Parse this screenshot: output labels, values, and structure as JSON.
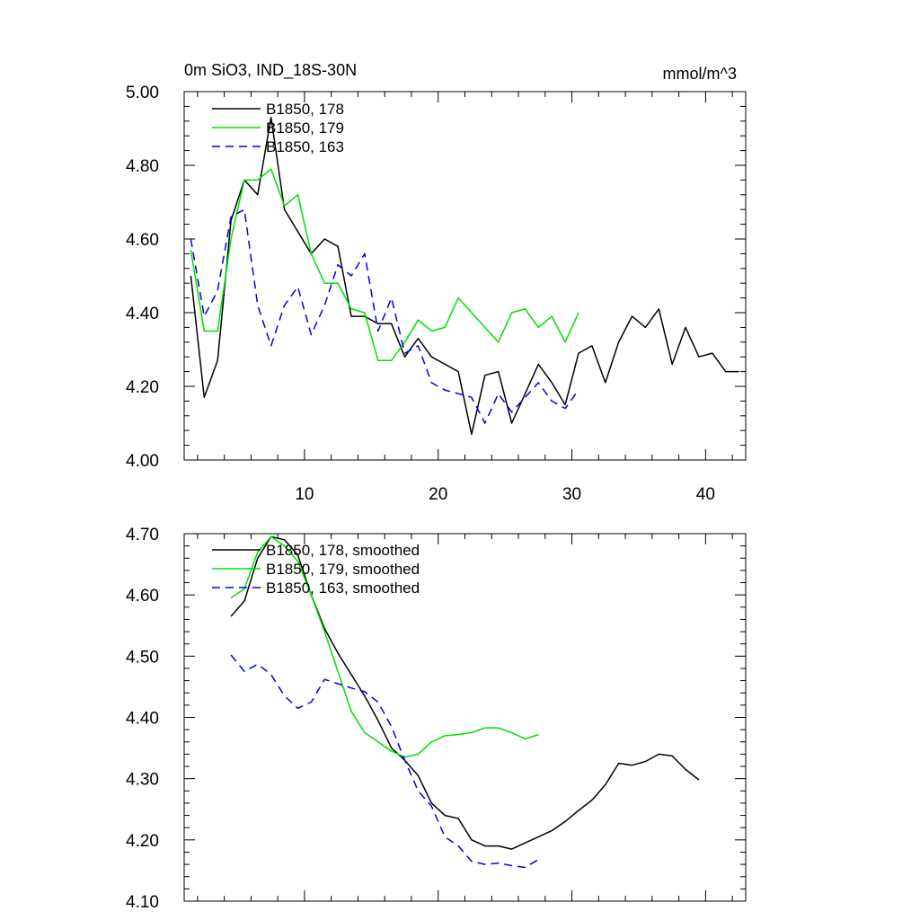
{
  "chart_data": [
    {
      "type": "line",
      "title": "0m SiO3, IND_18S-30N",
      "units": "mmol/m^3",
      "xlim": [
        1,
        43
      ],
      "ylim": [
        4.0,
        5.0
      ],
      "xticks": [
        10,
        20,
        30,
        40
      ],
      "xtick_labels": [
        "10",
        "20",
        "30",
        "40"
      ],
      "yticks": [
        4.0,
        4.2,
        4.4,
        4.6,
        4.8,
        5.0
      ],
      "ytick_labels": [
        "4.00",
        "4.20",
        "4.40",
        "4.60",
        "4.80",
        "5.00"
      ],
      "grid": false,
      "legend_position": "top-left",
      "series": [
        {
          "name": "B1850, 178",
          "color": "#000000",
          "dash": "solid",
          "x": [
            1.5,
            2.5,
            3.5,
            4.5,
            5.5,
            6.5,
            7.5,
            8.5,
            9.5,
            10.5,
            11.5,
            12.5,
            13.5,
            14.5,
            15.5,
            16.5,
            17.5,
            18.5,
            19.5,
            20.5,
            21.5,
            22.5,
            23.5,
            24.5,
            25.5,
            26.5,
            27.5,
            28.5,
            29.5,
            30.5,
            31.5,
            32.5,
            33.5,
            34.5,
            35.5,
            36.5,
            37.5,
            38.5,
            39.5,
            40.5,
            41.5,
            42.5
          ],
          "values": [
            4.5,
            4.17,
            4.27,
            4.65,
            4.76,
            4.72,
            4.93,
            4.68,
            4.62,
            4.56,
            4.6,
            4.58,
            4.39,
            4.39,
            4.37,
            4.37,
            4.28,
            4.33,
            4.28,
            4.26,
            4.24,
            4.07,
            4.23,
            4.24,
            4.1,
            4.18,
            4.26,
            4.21,
            4.15,
            4.29,
            4.31,
            4.21,
            4.32,
            4.39,
            4.36,
            4.41,
            4.26,
            4.36,
            4.28,
            4.29,
            4.24,
            4.24
          ]
        },
        {
          "name": "B1850, 179",
          "color": "#00e000",
          "dash": "solid",
          "x": [
            1.5,
            2.5,
            3.5,
            4.5,
            5.5,
            6.5,
            7.5,
            8.5,
            9.5,
            10.5,
            11.5,
            12.5,
            13.5,
            14.5,
            15.5,
            16.5,
            17.5,
            18.5,
            19.5,
            20.5,
            21.5,
            22.5,
            23.5,
            24.5,
            25.5,
            26.5,
            27.5,
            28.5,
            29.5,
            30.5
          ],
          "values": [
            4.57,
            4.35,
            4.35,
            4.6,
            4.76,
            4.76,
            4.79,
            4.69,
            4.72,
            4.56,
            4.48,
            4.48,
            4.41,
            4.4,
            4.27,
            4.27,
            4.32,
            4.38,
            4.35,
            4.36,
            4.44,
            4.4,
            4.36,
            4.32,
            4.4,
            4.41,
            4.36,
            4.39,
            4.32,
            4.4
          ]
        },
        {
          "name": "B1850, 163",
          "color": "#0000e0",
          "dash": "dashed",
          "x": [
            1.5,
            2.5,
            3.5,
            4.5,
            5.5,
            6.5,
            7.5,
            8.5,
            9.5,
            10.5,
            11.5,
            12.5,
            13.5,
            14.5,
            15.5,
            16.5,
            17.5,
            18.5,
            19.5,
            20.5,
            21.5,
            22.5,
            23.5,
            24.5,
            25.5,
            26.5,
            27.5,
            28.5,
            29.5,
            30.5
          ],
          "values": [
            4.6,
            4.39,
            4.46,
            4.66,
            4.68,
            4.42,
            4.31,
            4.42,
            4.47,
            4.34,
            4.42,
            4.53,
            4.5,
            4.56,
            4.35,
            4.44,
            4.29,
            4.31,
            4.21,
            4.19,
            4.18,
            4.17,
            4.1,
            4.18,
            4.13,
            4.17,
            4.21,
            4.16,
            4.14,
            4.19
          ]
        }
      ]
    },
    {
      "type": "line",
      "xlim": [
        1,
        43
      ],
      "ylim": [
        4.1,
        4.7
      ],
      "xticks": [
        10,
        20,
        30,
        40
      ],
      "yticks": [
        4.1,
        4.2,
        4.3,
        4.4,
        4.5,
        4.6,
        4.7
      ],
      "ytick_labels": [
        "4.10",
        "4.20",
        "4.30",
        "4.40",
        "4.50",
        "4.60",
        "4.70"
      ],
      "grid": false,
      "legend_position": "top-left",
      "series": [
        {
          "name": "B1850, 178, smoothed",
          "color": "#000000",
          "dash": "solid",
          "x": [
            4.5,
            5.5,
            6.5,
            7.5,
            8.5,
            9.5,
            10.5,
            11.5,
            12.5,
            13.5,
            14.5,
            15.5,
            16.5,
            17.5,
            18.5,
            19.5,
            20.5,
            21.5,
            22.5,
            23.5,
            24.5,
            25.5,
            26.5,
            27.5,
            28.5,
            29.5,
            30.5,
            31.5,
            32.5,
            33.5,
            34.5,
            35.5,
            36.5,
            37.5,
            38.5,
            39.5
          ],
          "values": [
            4.565,
            4.59,
            4.66,
            4.695,
            4.69,
            4.665,
            4.6,
            4.545,
            4.505,
            4.47,
            4.435,
            4.395,
            4.35,
            4.33,
            4.305,
            4.26,
            4.24,
            4.235,
            4.2,
            4.19,
            4.19,
            4.185,
            4.195,
            4.205,
            4.215,
            4.23,
            4.248,
            4.265,
            4.29,
            4.325,
            4.322,
            4.328,
            4.34,
            4.337,
            4.315,
            4.298
          ]
        },
        {
          "name": "B1850, 179, smoothed",
          "color": "#00e000",
          "dash": "solid",
          "x": [
            4.5,
            5.5,
            6.5,
            7.5,
            8.5,
            9.5,
            10.5,
            11.5,
            12.5,
            13.5,
            14.5,
            15.5,
            16.5,
            17.5,
            18.5,
            19.5,
            20.5,
            21.5,
            22.5,
            23.5,
            24.5,
            25.5,
            26.5,
            27.5
          ],
          "values": [
            4.595,
            4.61,
            4.67,
            4.695,
            4.68,
            4.655,
            4.6,
            4.54,
            4.475,
            4.41,
            4.375,
            4.36,
            4.345,
            4.335,
            4.34,
            4.36,
            4.37,
            4.372,
            4.375,
            4.383,
            4.383,
            4.375,
            4.365,
            4.372
          ]
        },
        {
          "name": "B1850, 163, smoothed",
          "color": "#0000e0",
          "dash": "dashed",
          "x": [
            4.5,
            5.5,
            6.5,
            7.5,
            8.5,
            9.5,
            10.5,
            11.5,
            12.5,
            13.5,
            14.5,
            15.5,
            16.5,
            17.5,
            18.5,
            19.5,
            20.5,
            21.5,
            22.5,
            23.5,
            24.5,
            25.5,
            26.5,
            27.5
          ],
          "values": [
            4.502,
            4.475,
            4.487,
            4.47,
            4.435,
            4.415,
            4.425,
            4.462,
            4.455,
            4.448,
            4.442,
            4.425,
            4.385,
            4.33,
            4.28,
            4.255,
            4.205,
            4.19,
            4.165,
            4.16,
            4.162,
            4.158,
            4.155,
            4.168
          ]
        }
      ]
    }
  ]
}
